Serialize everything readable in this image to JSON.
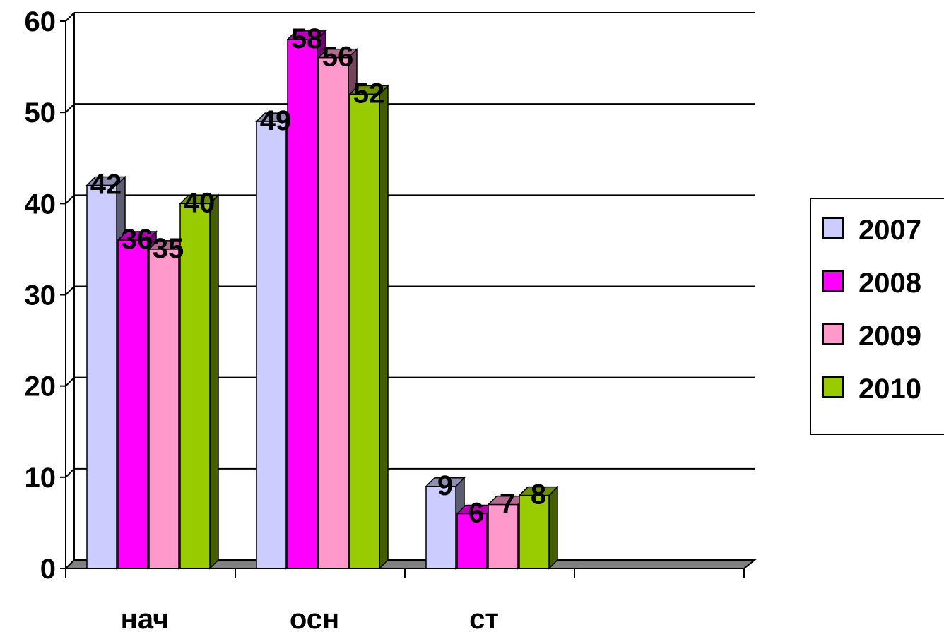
{
  "chart_data": {
    "type": "bar",
    "title": "",
    "xlabel": "",
    "ylabel": "",
    "categories": [
      "нач",
      "осн",
      "ст"
    ],
    "series": [
      {
        "name": "2007",
        "values": [
          42,
          49,
          9
        ],
        "color": "#ccccff"
      },
      {
        "name": "2008",
        "values": [
          36,
          58,
          6
        ],
        "color": "#ff00ff"
      },
      {
        "name": "2009",
        "values": [
          35,
          56,
          7
        ],
        "color": "#ff99cc"
      },
      {
        "name": "2010",
        "values": [
          40,
          52,
          8
        ],
        "color": "#99cc00"
      }
    ],
    "ylim": [
      0,
      60
    ],
    "yticks": [
      "0",
      "10",
      "20",
      "30",
      "40",
      "50",
      "60"
    ],
    "grid": true,
    "legend_position": "right",
    "data_labels": true,
    "style": "3d-columns"
  }
}
